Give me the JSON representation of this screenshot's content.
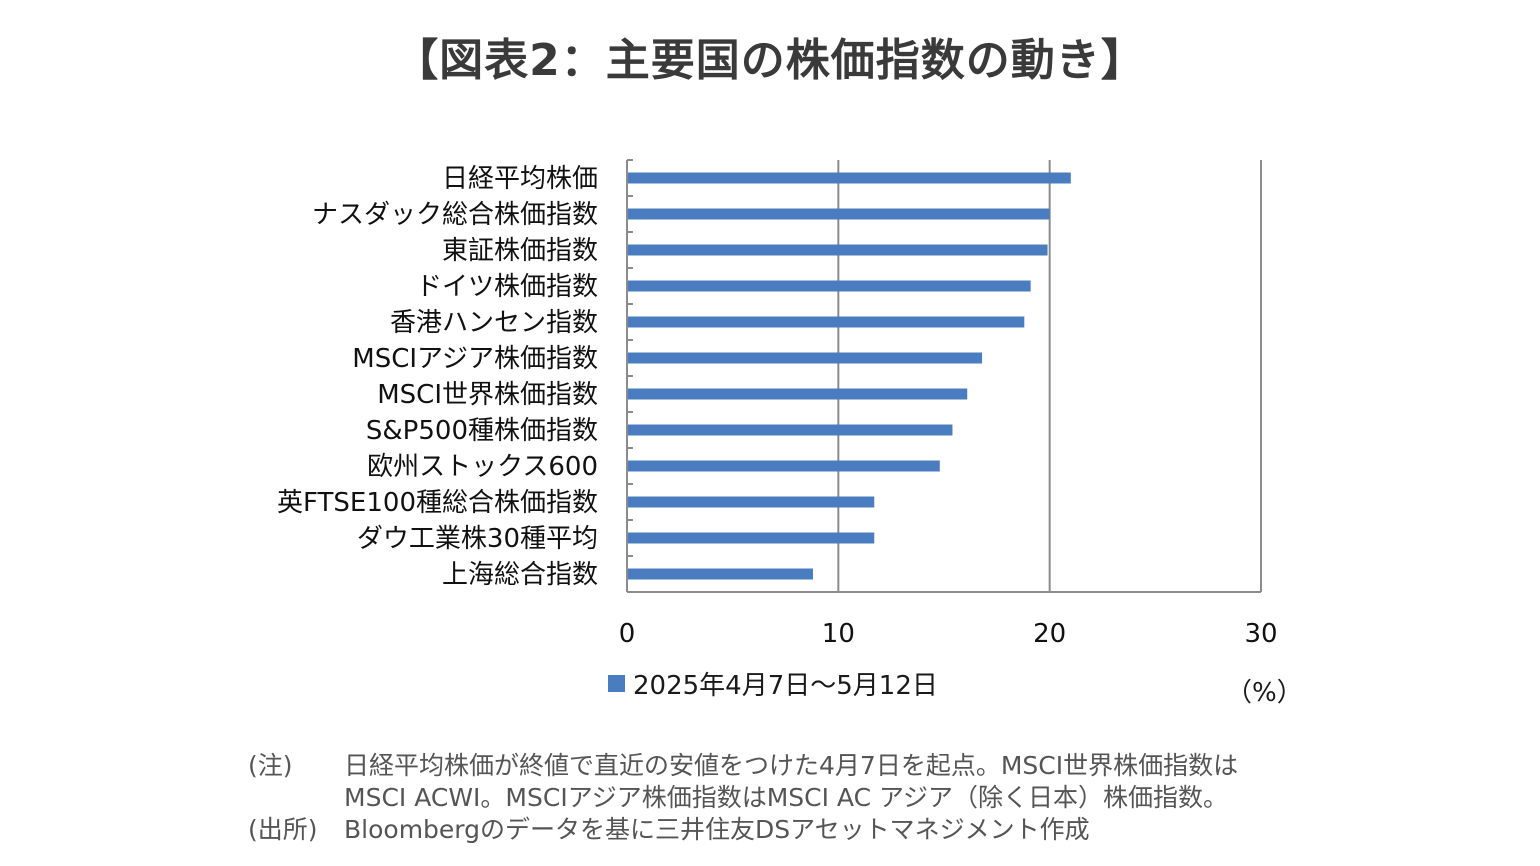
{
  "title": "【図表2：主要国の株価指数の動き】",
  "chart_data": {
    "type": "bar",
    "orientation": "horizontal",
    "categories": [
      "日経平均株価",
      "ナスダック総合株価指数",
      "東証株価指数",
      "ドイツ株価指数",
      "香港ハンセン指数",
      "MSCIアジア株価指数",
      "MSCI世界株価指数",
      "S&P500種株価指数",
      "欧州ストックス600",
      "英FTSE100種総合株価指数",
      "ダウ工業株30種平均",
      "上海総合指数"
    ],
    "series": [
      {
        "name": "2025年4月7日～5月12日",
        "values": [
          21.0,
          20.0,
          19.9,
          19.1,
          18.8,
          16.8,
          16.1,
          15.4,
          14.8,
          11.7,
          11.7,
          8.8
        ]
      }
    ],
    "xlim": [
      0,
      30
    ],
    "xticks": [
      "0",
      "10",
      "20",
      "30"
    ],
    "unit": "（%）",
    "grid": true,
    "legend_position": "bottom",
    "bar_color": "#4a7cc0"
  },
  "notes": [
    {
      "tag": "(注)",
      "lines": [
        "日経平均株価が終値で直近の安値をつけた4月7日を起点。MSCI世界株価指数は",
        "MSCI ACWI。MSCIアジア株価指数はMSCI AC アジア（除く日本）株価指数。"
      ]
    },
    {
      "tag": "(出所)",
      "lines": [
        "Bloombergのデータを基に三井住友DSアセットマネジメント作成"
      ]
    }
  ]
}
